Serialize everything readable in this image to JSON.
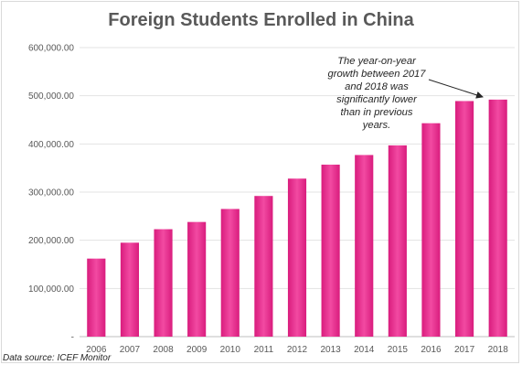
{
  "chart_data": {
    "type": "bar",
    "title": "Foreign Students Enrolled in China",
    "categories": [
      "2006",
      "2007",
      "2008",
      "2009",
      "2010",
      "2011",
      "2012",
      "2013",
      "2014",
      "2015",
      "2016",
      "2017",
      "2018"
    ],
    "values": [
      162000,
      195000,
      223000,
      238000,
      265000,
      292000,
      328000,
      357000,
      377000,
      397000,
      443000,
      489000,
      492000
    ],
    "y_ticks": [
      "-",
      "100,000.00",
      "200,000.00",
      "300,000.00",
      "400,000.00",
      "500,000.00",
      "600,000.00"
    ],
    "ylim": [
      0,
      600000
    ],
    "grid": true,
    "bar_color": "#e8258a",
    "annotation": "The year-on-year growth between 2017 and 2018 was significantly lower than in previous years.",
    "source": "Data source: ICEF Monitor"
  }
}
